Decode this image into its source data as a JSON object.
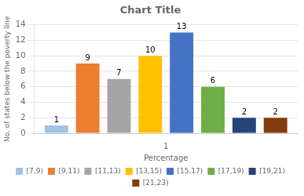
{
  "chart_data": {
    "type": "bar",
    "title": "Chart Title",
    "xlabel": "Percentage",
    "ylabel": "No. of states below the poverty line",
    "categories": [
      "1"
    ],
    "series": [
      {
        "name": "[7,9)",
        "color": "#9dc3e6",
        "values": [
          1
        ]
      },
      {
        "name": "[9,11)",
        "color": "#ed7d31",
        "values": [
          9
        ]
      },
      {
        "name": "[11,13)",
        "color": "#a5a5a5",
        "values": [
          7
        ]
      },
      {
        "name": "[13,15)",
        "color": "#ffc000",
        "values": [
          10
        ]
      },
      {
        "name": "[15,17)",
        "color": "#4472c4",
        "values": [
          13
        ]
      },
      {
        "name": "[17,19)",
        "color": "#70ad47",
        "values": [
          6
        ]
      },
      {
        "name": "[19,21)",
        "color": "#264478",
        "values": [
          2
        ]
      },
      {
        "name": "[21,23)",
        "color": "#843c0c",
        "values": [
          2
        ]
      }
    ],
    "ylim": [
      0,
      14
    ],
    "yticks": [
      0,
      2,
      4,
      6,
      8,
      10,
      12,
      14
    ],
    "grid": "y",
    "legend": "bottom",
    "data_labels": true
  }
}
